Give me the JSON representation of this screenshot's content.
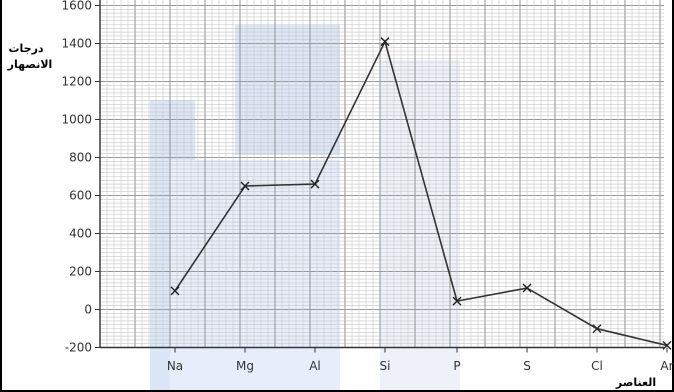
{
  "chart_data": {
    "type": "line",
    "categories": [
      "Na",
      "Mg",
      "Al",
      "Si",
      "P",
      "S",
      "Cl",
      "Ar"
    ],
    "values": [
      98,
      650,
      660,
      1410,
      44,
      113,
      -101,
      -189
    ],
    "ylabel_line1": "درجات",
    "ylabel_line2": "الانصهار",
    "xlabel": "العناصر",
    "yticks": [
      -200,
      0,
      200,
      400,
      600,
      800,
      1000,
      1200,
      1400,
      1600
    ],
    "ylim": [
      -200,
      1600
    ],
    "grid": true,
    "marker": "x",
    "line_color": "#333333"
  }
}
